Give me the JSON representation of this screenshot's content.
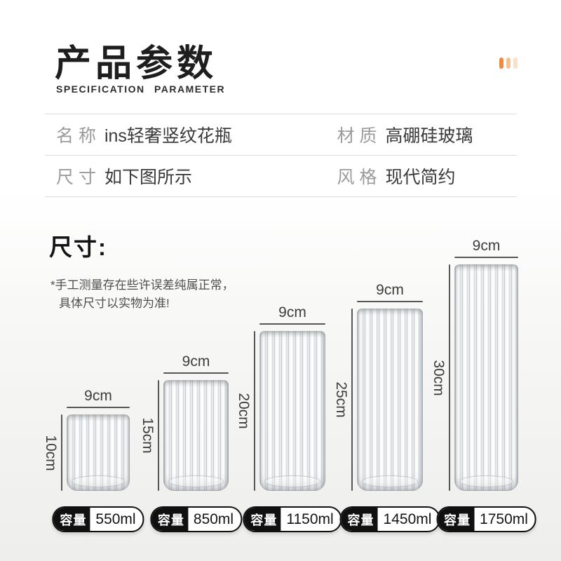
{
  "header": {
    "title": "产品参数",
    "subtitle": "SPECIFICATION PARAMETER",
    "accent_bar_colors": [
      "#f08a3c",
      "#f5c093",
      "#fbe0c8"
    ]
  },
  "spec_table": {
    "rows": [
      {
        "cells": [
          {
            "label": "名 称",
            "value": "ins轻奢竖纹花瓶"
          },
          {
            "label": "材 质",
            "value": "高硼硅玻璃"
          }
        ]
      },
      {
        "cells": [
          {
            "label": "尺 寸",
            "value": "如下图所示"
          },
          {
            "label": "风 格",
            "value": "现代简约"
          }
        ]
      }
    ]
  },
  "size_section": {
    "heading": "尺寸:",
    "note_lines": [
      "*手工测量存在些许误差纯属正常，",
      "具体尺寸以实物为准!"
    ],
    "capacity_label": "容量",
    "vases": [
      {
        "width_label": "9cm",
        "height_label": "10cm",
        "capacity": "550ml"
      },
      {
        "width_label": "9cm",
        "height_label": "15cm",
        "capacity": "850ml"
      },
      {
        "width_label": "9cm",
        "height_label": "20cm",
        "capacity": "1150ml"
      },
      {
        "width_label": "9cm",
        "height_label": "25cm",
        "capacity": "1450ml"
      },
      {
        "width_label": "9cm",
        "height_label": "30cm",
        "capacity": "1750ml"
      }
    ]
  }
}
